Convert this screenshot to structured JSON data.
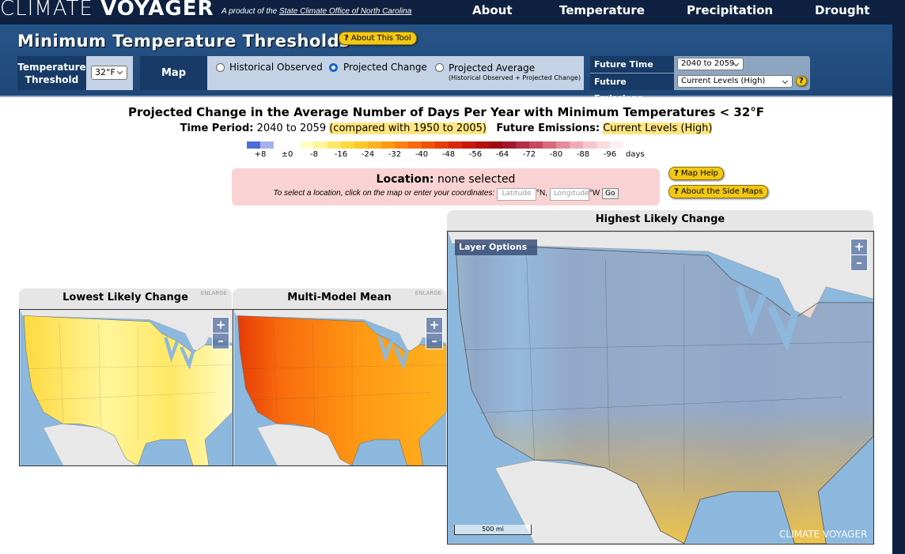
{
  "header": {
    "logo_light": "CLIMATE",
    "logo_bold": "VOYAGER",
    "tagline": "A product of the",
    "tagline_link": "State Climate Office of North Carolina",
    "nav": [
      "About",
      "Temperature",
      "Precipitation",
      "Drought"
    ]
  },
  "toolbar": {
    "title": "Minimum Temperature Thresholds",
    "about_button": "About This Tool",
    "help_icon": "?",
    "threshold_label": "Temperature Threshold",
    "threshold": "32°F",
    "map_display": {
      "label": "Map Display",
      "options": [
        "Historical Observed",
        "Projected Change",
        "Projected Average"
      ],
      "option_note": "(Historical Observed + Projected Change)",
      "selected": 1
    },
    "future": {
      "period_label": "Future Time Period",
      "period": "2040 to 2059",
      "emissions_label": "Future Emissions",
      "emissions": "Current Levels (High)"
    }
  },
  "summary": {
    "heading": "Projected Change in the Average Number of Days Per Year with Minimum Temperatures < 32°F",
    "time_period_label": "Time Period:",
    "time_period": "2040 to 2059",
    "baseline": "(compared with 1950 to 2005)",
    "emissions_label": "Future Emissions:",
    "emissions": "Current Levels (High)"
  },
  "legend": {
    "colors": [
      "#4f6bd8",
      "#a4b1ea",
      "#ffffff",
      "#ffffff",
      "#fffcc4",
      "#fff59a",
      "#ffe866",
      "#ffd93d",
      "#ffc629",
      "#ffb11e",
      "#ff9a14",
      "#ff8210",
      "#f86a0c",
      "#ef5209",
      "#e63c07",
      "#d92806",
      "#c81a08",
      "#b3100c",
      "#9e0a12",
      "#a0162c",
      "#b52d45",
      "#c9485e",
      "#d86a7c",
      "#e48c9a",
      "#eeaab5",
      "#f5c6cd",
      "#f9dde1",
      "#fdeff1"
    ],
    "labels": [
      "+8",
      "±0",
      "-8",
      "-16",
      "-24",
      "-32",
      "-40",
      "-48",
      "-56",
      "-64",
      "-72",
      "-80",
      "-88",
      "-96"
    ],
    "unit": "days"
  },
  "location": {
    "label": "Location:",
    "value": "none selected",
    "instructions": "To select a location, click on the map or enter your coordinates:",
    "lat_placeholder": "Latitude",
    "lat_unit": "°N,",
    "lon_placeholder": "Longitude",
    "lon_unit": "°W",
    "go": "Go"
  },
  "help_buttons": [
    "Map Help",
    "About the Side Maps"
  ],
  "maps": [
    {
      "title": "Lowest Likely Change",
      "enlarge": "ENLARGE"
    },
    {
      "title": "Multi-Model Mean",
      "enlarge": "ENLARGE"
    },
    {
      "title": "Highest Likely Change",
      "layer_options": "Layer Options",
      "scale": "500 mi",
      "watermark": "CLIMATE VOYAGER"
    }
  ],
  "zoom_in": "+",
  "zoom_out": "–"
}
